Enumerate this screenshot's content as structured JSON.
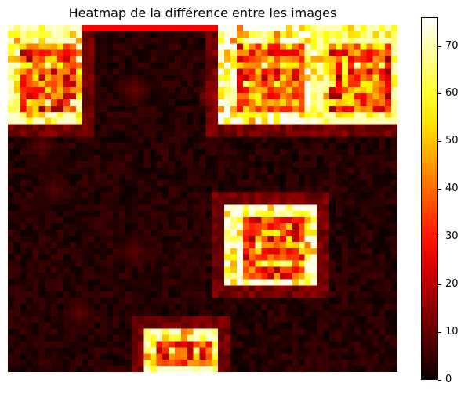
{
  "chart_data": {
    "type": "heatmap",
    "title": "Heatmap de la différence entre les images",
    "colormap": "hot",
    "value_range": [
      0,
      76
    ],
    "grid": false,
    "colorbar": {
      "position": "right",
      "ticks": [
        0,
        10,
        20,
        30,
        40,
        50,
        60,
        70
      ],
      "tick_labels": [
        "0",
        "10",
        "20",
        "30",
        "40",
        "50",
        "60",
        "70"
      ]
    },
    "grid_size": {
      "rows": 56,
      "cols": 63
    },
    "hotspots": [
      {
        "description": "top-left bright square block",
        "rows": [
          0,
          16
        ],
        "cols": [
          0,
          12
        ],
        "peak": 72
      },
      {
        "description": "top center-right bright square block",
        "rows": [
          0,
          16
        ],
        "cols": [
          34,
          50
        ],
        "peak": 75
      },
      {
        "description": "top right bright square block",
        "rows": [
          0,
          16
        ],
        "cols": [
          50,
          63
        ],
        "peak": 70
      },
      {
        "description": "middle-right ring block",
        "rows": [
          29,
          42
        ],
        "cols": [
          35,
          50
        ],
        "peak": 74
      },
      {
        "description": "bottom center small block",
        "rows": [
          49,
          56
        ],
        "cols": [
          22,
          34
        ],
        "peak": 72
      }
    ]
  }
}
